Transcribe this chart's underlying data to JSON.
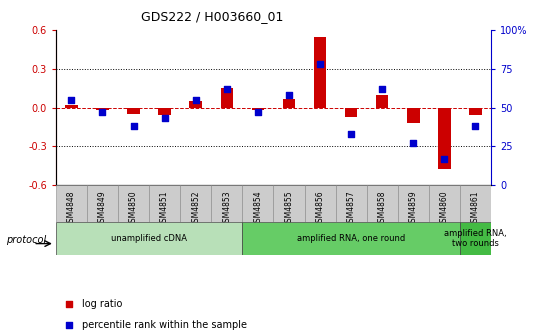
{
  "title": "GDS222 / H003660_01",
  "samples": [
    "GSM4848",
    "GSM4849",
    "GSM4850",
    "GSM4851",
    "GSM4852",
    "GSM4853",
    "GSM4854",
    "GSM4855",
    "GSM4856",
    "GSM4857",
    "GSM4858",
    "GSM4859",
    "GSM4860",
    "GSM4861"
  ],
  "log_ratio": [
    0.02,
    -0.02,
    -0.05,
    -0.06,
    0.05,
    0.15,
    -0.02,
    0.07,
    0.55,
    -0.07,
    0.1,
    -0.12,
    -0.48,
    -0.06
  ],
  "percentile": [
    55,
    47,
    38,
    43,
    55,
    62,
    47,
    58,
    78,
    33,
    62,
    27,
    17,
    38
  ],
  "ylim_left": [
    -0.6,
    0.6
  ],
  "ylim_right": [
    0,
    100
  ],
  "yticks_left": [
    -0.6,
    -0.3,
    0.0,
    0.3,
    0.6
  ],
  "yticks_right": [
    0,
    25,
    50,
    75,
    100
  ],
  "protocols": [
    {
      "label": "unamplified cDNA",
      "start": 0,
      "end": 5,
      "color": "#b8e0b8"
    },
    {
      "label": "amplified RNA, one round",
      "start": 6,
      "end": 12,
      "color": "#66cc66"
    },
    {
      "label": "amplified RNA,\ntwo rounds",
      "start": 13,
      "end": 13,
      "color": "#44bb44"
    }
  ],
  "bar_color": "#cc0000",
  "dot_color": "#0000cc",
  "hline_color": "#cc0000",
  "grid_color": "#000000",
  "bg_color": "#ffffff",
  "legend_log": "log ratio",
  "legend_pct": "percentile rank within the sample",
  "protocol_label": "protocol"
}
